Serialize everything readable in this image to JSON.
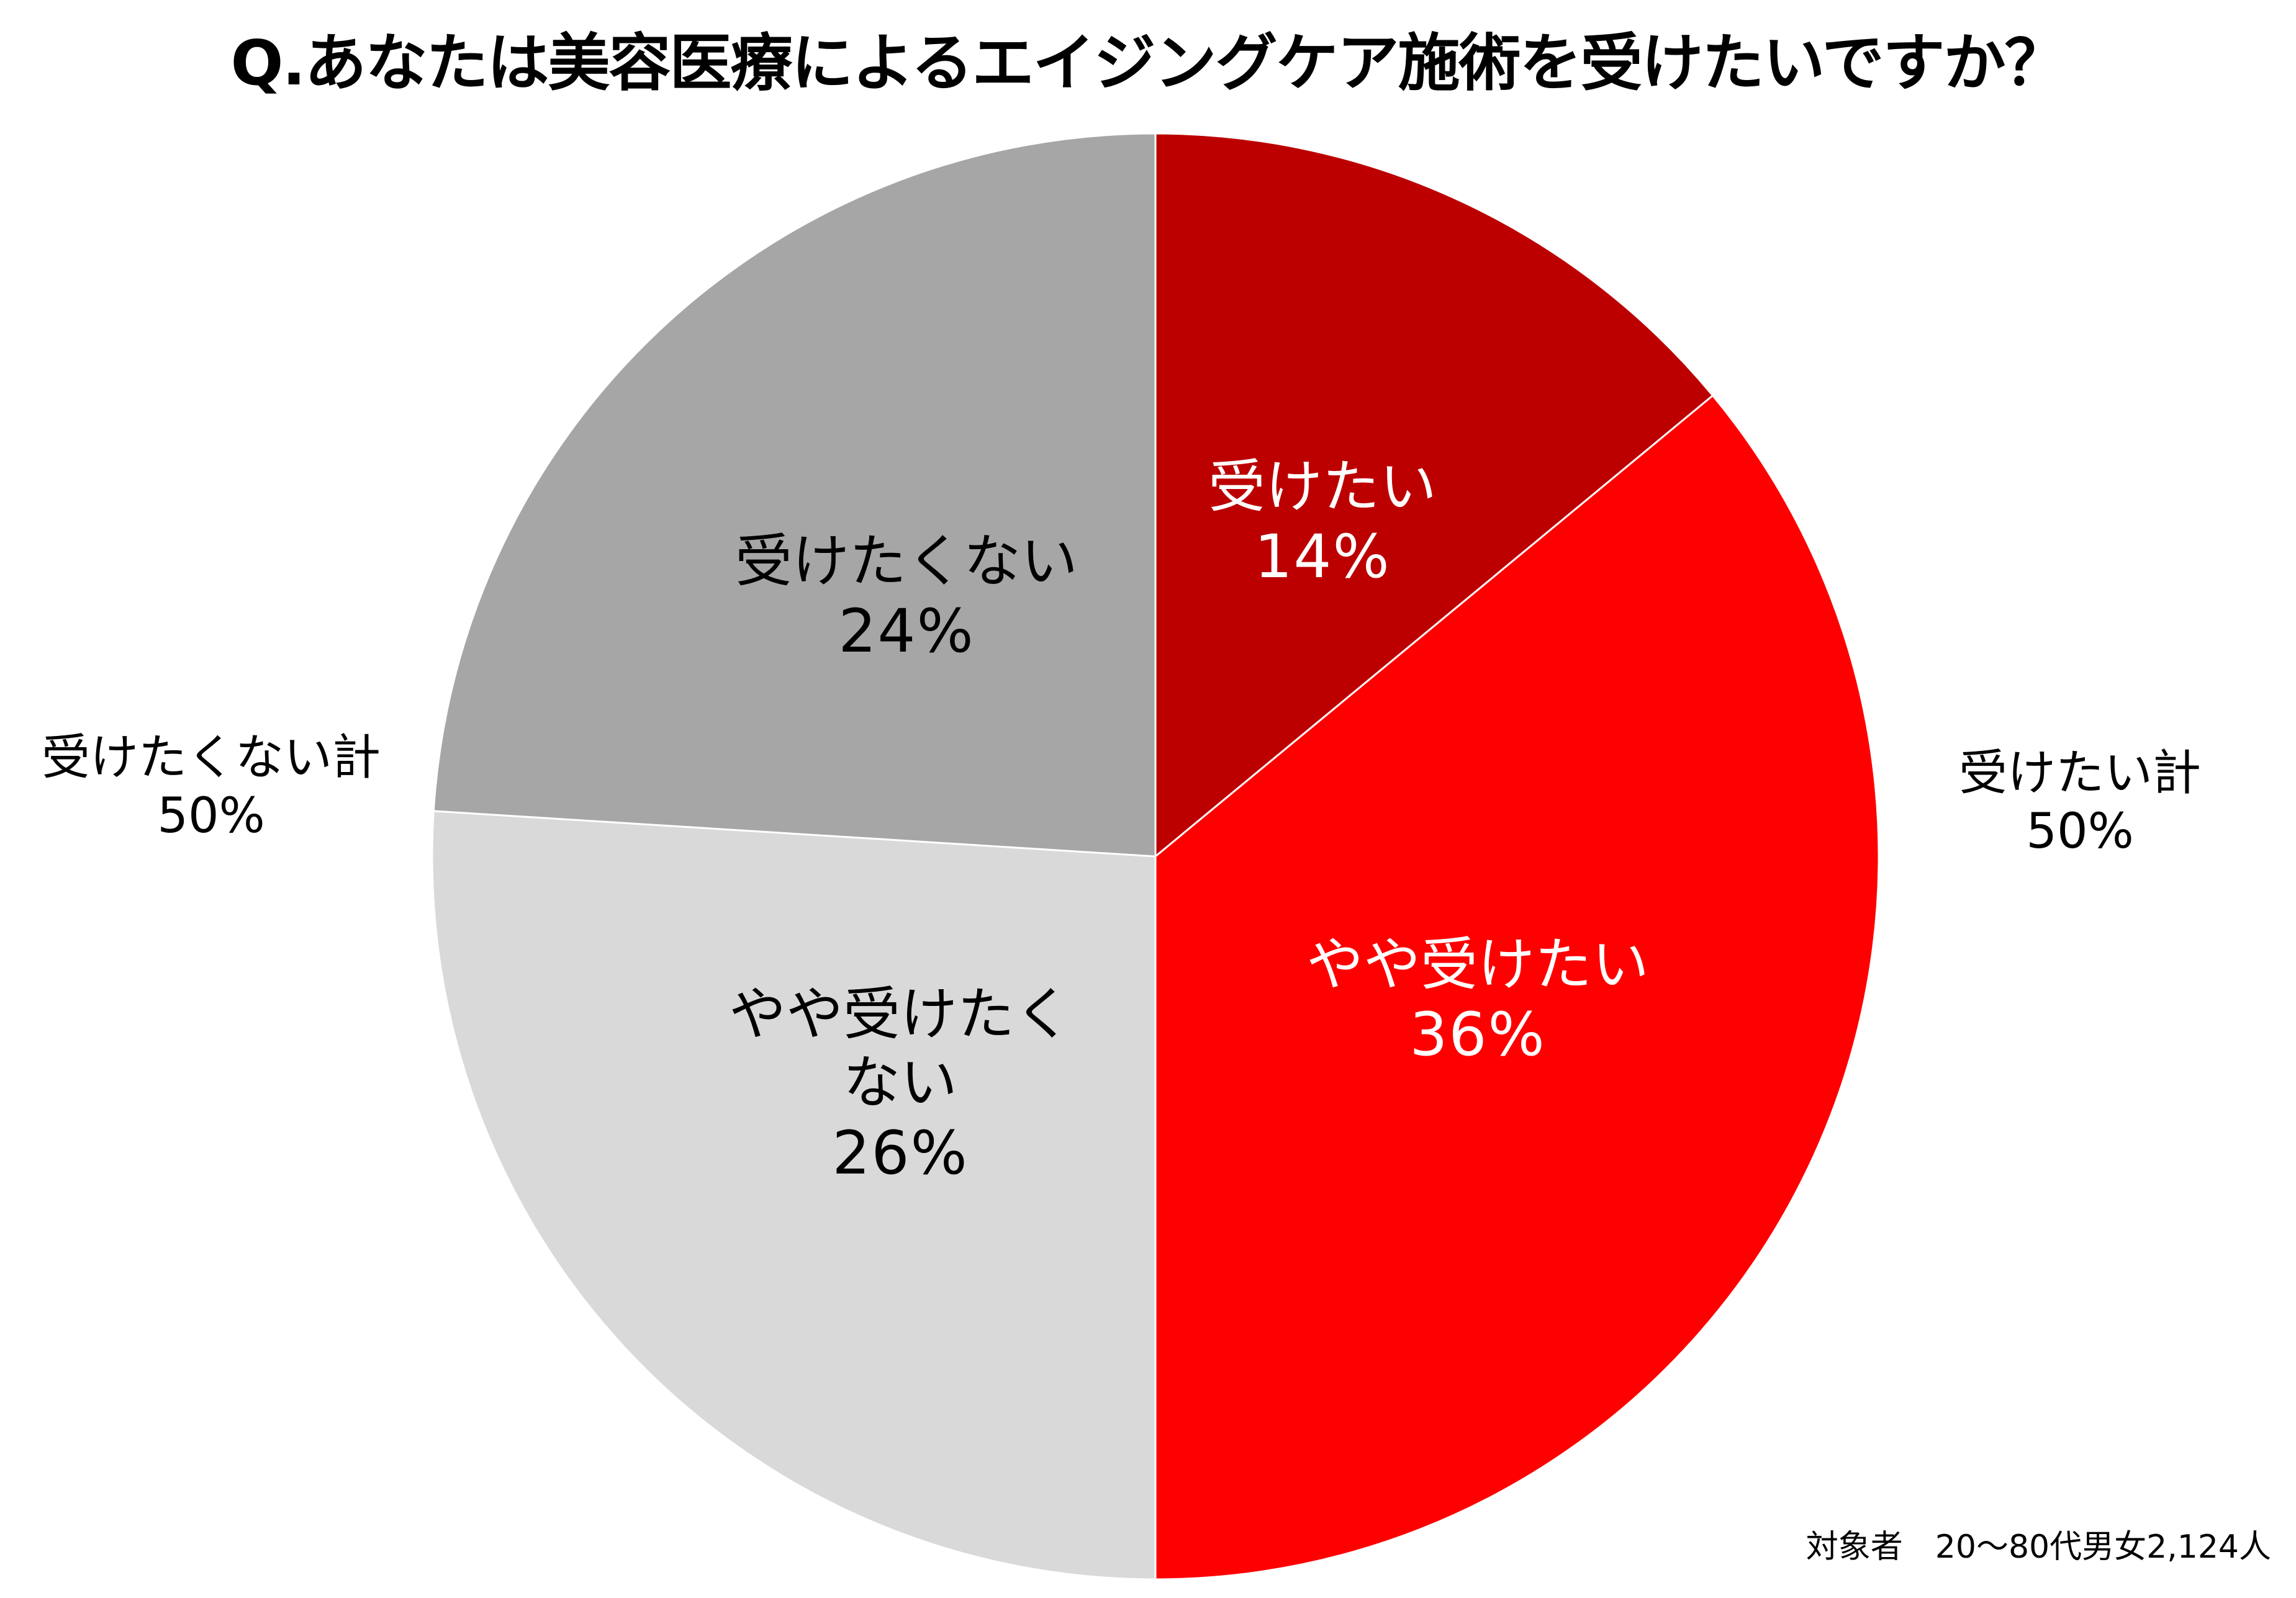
{
  "chart_data": {
    "type": "pie",
    "title": "Q.あなたは美容医療によるエイジングケア施術を受けたいですか？",
    "start": "12 o'clock",
    "direction": "clockwise",
    "slices": [
      {
        "label": "受けたい",
        "value": 14,
        "value_label": "14%",
        "color": "#BC0000"
      },
      {
        "label": "やや受けたい",
        "value": 36,
        "value_label": "36%",
        "color": "#FF0000"
      },
      {
        "label": "やや受けたくない",
        "value": 26,
        "value_label": "26%",
        "color": "#D9D9D9"
      },
      {
        "label": "受けたくない",
        "value": 24,
        "value_label": "24%",
        "color": "#A6A6A6"
      }
    ],
    "totals": [
      {
        "label": "受けたい計",
        "value": 50,
        "value_label": "50%"
      },
      {
        "label": "受けたくない計",
        "value": 50,
        "value_label": "50%"
      }
    ],
    "note": "対象者　20～80代男女2,124人"
  }
}
